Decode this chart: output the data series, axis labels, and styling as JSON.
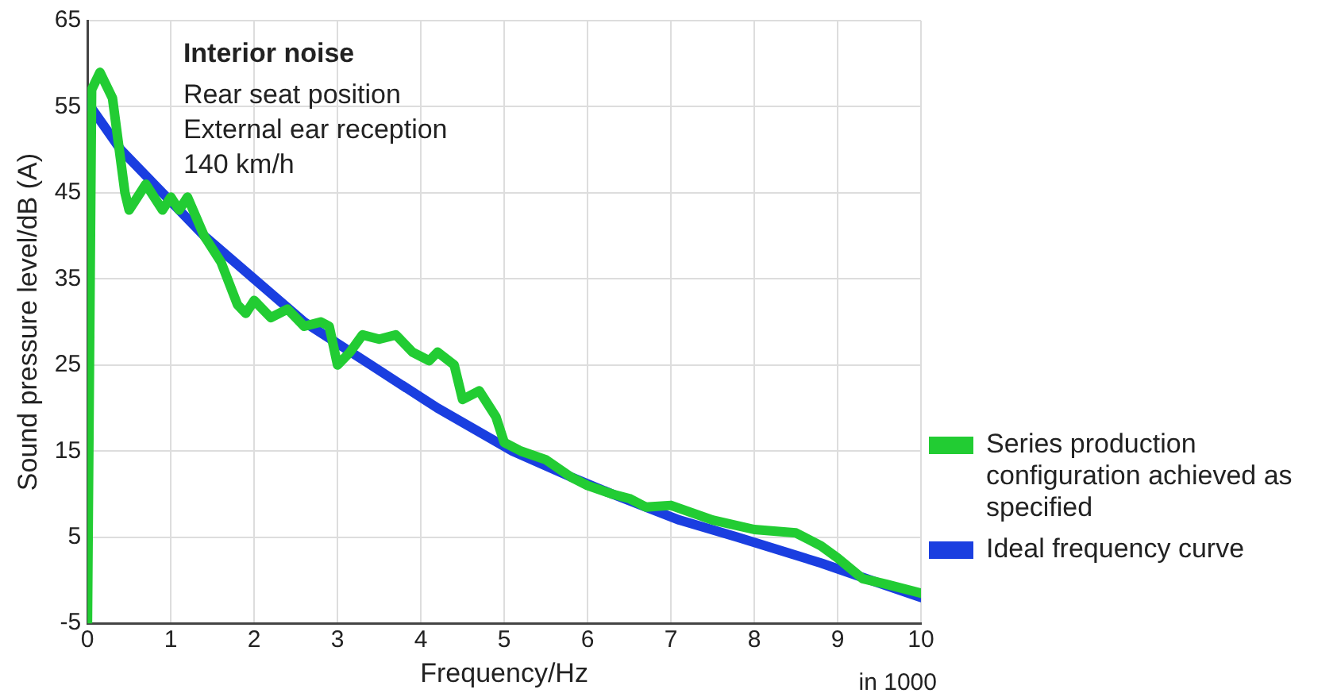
{
  "chart_data": {
    "type": "line",
    "title": "Interior noise",
    "xlabel": "Frequency/Hz",
    "ylabel": "Sound pressure level/dB (A)",
    "annotations": [
      "Rear seat position",
      "External ear reception",
      "140 km/h",
      "in 1000"
    ],
    "xlim": [
      0,
      10
    ],
    "xticks": [
      0,
      1,
      2,
      3,
      4,
      5,
      6,
      7,
      8,
      9,
      10
    ],
    "ylim": [
      -5,
      65
    ],
    "yticks": [
      -5,
      5,
      15,
      25,
      35,
      45,
      55,
      65
    ],
    "grid": true,
    "legend": "right",
    "marker": "none",
    "line_style": "solid",
    "series": [
      {
        "name": "Ideal frequency curve",
        "color": "#1a3ee0",
        "x": [
          0,
          0.4,
          0.9,
          1.4,
          2,
          2.6,
          3.4,
          4.2,
          5.1,
          5.8,
          6.3,
          7.1,
          7.8,
          8.8,
          9.4,
          10
        ],
        "values": [
          55.5,
          50,
          45,
          40,
          35,
          30,
          25,
          20,
          15,
          12,
          10,
          7,
          5,
          2,
          0,
          -2
        ]
      },
      {
        "name": "Series production configuration achieved as specified",
        "color": "#22cc33",
        "x": [
          0,
          0.05,
          0.15,
          0.3,
          0.45,
          0.5,
          0.7,
          0.9,
          1,
          1.1,
          1.2,
          1.4,
          1.6,
          1.8,
          1.9,
          2,
          2.2,
          2.4,
          2.6,
          2.8,
          2.9,
          3,
          3.15,
          3.3,
          3.5,
          3.7,
          3.9,
          4.1,
          4.2,
          4.4,
          4.5,
          4.7,
          4.9,
          5,
          5.2,
          5.5,
          5.8,
          6,
          6.3,
          6.5,
          6.7,
          7,
          7.5,
          8,
          8.5,
          8.8,
          9,
          9.3,
          9.6,
          10
        ],
        "values": [
          -5,
          57,
          59,
          56,
          45,
          43,
          46,
          43,
          44.5,
          43,
          44.5,
          40,
          37,
          32,
          31,
          32.5,
          30.5,
          31.5,
          29.5,
          30,
          29.5,
          25,
          26.5,
          28.5,
          28,
          28.5,
          26.5,
          25.5,
          26.5,
          25,
          21,
          22,
          19,
          16,
          15,
          14,
          12,
          11,
          10,
          9.5,
          8.5,
          8.7,
          7,
          5.9,
          5.5,
          4,
          2.6,
          0.2,
          -0.5,
          -1.5
        ]
      }
    ]
  }
}
